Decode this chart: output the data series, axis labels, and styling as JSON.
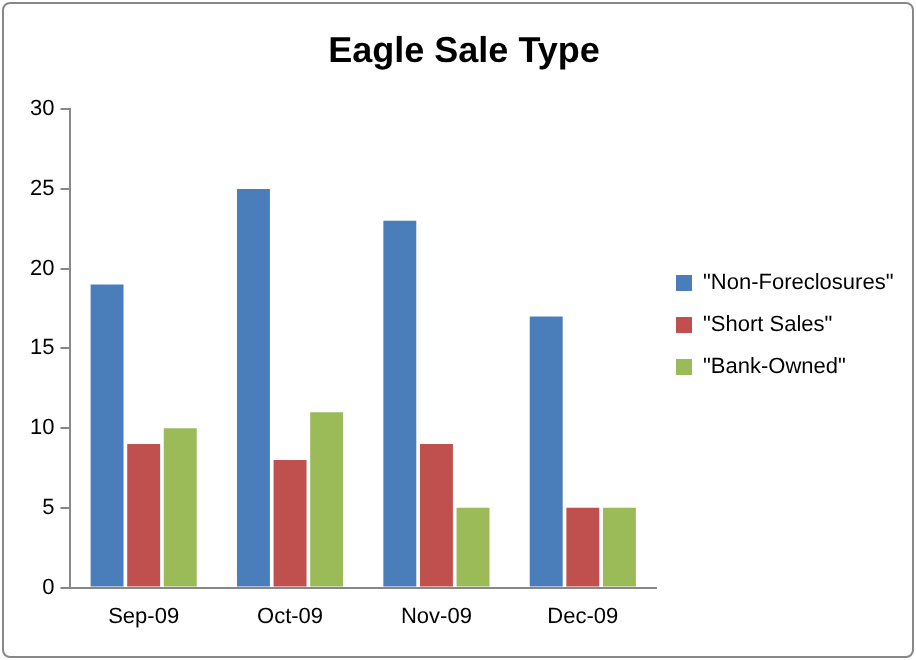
{
  "chart_data": {
    "type": "bar",
    "title": "Eagle Sale Type",
    "categories": [
      "Sep-09",
      "Oct-09",
      "Nov-09",
      "Dec-09"
    ],
    "series": [
      {
        "name": "\"Non-Foreclosures\"",
        "color": "#4a7ebb",
        "values": [
          19,
          25,
          23,
          17
        ]
      },
      {
        "name": "\"Short Sales\"",
        "color": "#c0504d",
        "values": [
          9,
          8,
          9,
          5
        ]
      },
      {
        "name": "\"Bank-Owned\"",
        "color": "#9bbb59",
        "values": [
          10,
          11,
          5,
          5
        ]
      }
    ],
    "ylim": [
      0,
      30
    ],
    "yticks": [
      0,
      5,
      10,
      15,
      20,
      25,
      30
    ],
    "grid": false,
    "legend": "right"
  }
}
